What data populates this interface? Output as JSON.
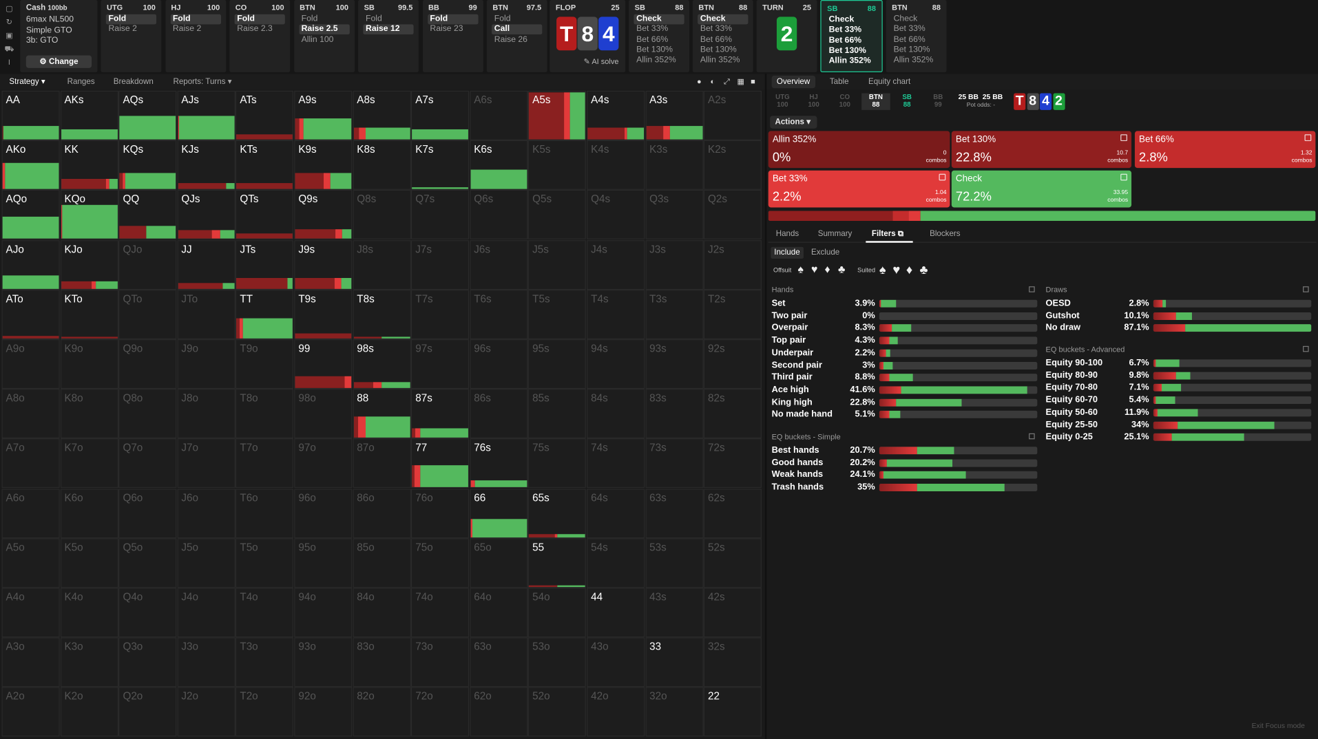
{
  "colors": {
    "green": "#54b95e",
    "dark_red": "#8a2020",
    "red": "#e33a3a",
    "mid_red": "#c52a2a",
    "blue": "#1f3fd0",
    "gray_card": "#4a4a4a",
    "accent": "#1ec995"
  },
  "sidebar_icons": [
    "square-icon",
    "refresh-icon",
    "save-icon",
    "car-icon",
    "text-cursor-icon"
  ],
  "game": {
    "title": "Cash",
    "stakes": "100bb",
    "lines": [
      "6max NL500",
      "Simple GTO",
      "3b: GTO"
    ],
    "change": "Change",
    "change_icon": "gear-icon"
  },
  "preflop": [
    {
      "pos": "UTG",
      "stack": "100",
      "opts": [
        {
          "t": "Fold",
          "sel": true
        },
        {
          "t": "Raise 2"
        }
      ]
    },
    {
      "pos": "HJ",
      "stack": "100",
      "opts": [
        {
          "t": "Fold",
          "sel": true
        },
        {
          "t": "Raise 2"
        }
      ]
    },
    {
      "pos": "CO",
      "stack": "100",
      "opts": [
        {
          "t": "Fold",
          "sel": true
        },
        {
          "t": "Raise 2.3"
        }
      ]
    },
    {
      "pos": "BTN",
      "stack": "100",
      "opts": [
        {
          "t": "Fold"
        },
        {
          "t": "Raise 2.5",
          "sel": true
        },
        {
          "t": "Allin 100"
        }
      ]
    },
    {
      "pos": "SB",
      "stack": "99.5",
      "opts": [
        {
          "t": "Fold"
        },
        {
          "t": "Raise 12",
          "sel": true
        }
      ]
    },
    {
      "pos": "BB",
      "stack": "99",
      "opts": [
        {
          "t": "Fold",
          "sel": true
        },
        {
          "t": "Raise 23"
        }
      ]
    },
    {
      "pos": "BTN",
      "stack": "97.5",
      "opts": [
        {
          "t": "Fold"
        },
        {
          "t": "Call",
          "sel": true
        },
        {
          "t": "Raise 26"
        }
      ]
    }
  ],
  "flop": {
    "label": "FLOP",
    "pot": "25",
    "cards": [
      {
        "r": "T",
        "c": "#b51d1d"
      },
      {
        "r": "8",
        "c": "#4a4a4a"
      },
      {
        "r": "4",
        "c": "#1f3fd0"
      }
    ],
    "ai": "AI solve"
  },
  "postflop": [
    {
      "pos": "SB",
      "stack": "88",
      "opts": [
        {
          "t": "Check",
          "sel": true
        },
        {
          "t": "Bet 33%"
        },
        {
          "t": "Bet 66%"
        },
        {
          "t": "Bet 130%"
        },
        {
          "t": "Allin 352%"
        }
      ]
    },
    {
      "pos": "BTN",
      "stack": "88",
      "opts": [
        {
          "t": "Check",
          "sel": true
        },
        {
          "t": "Bet 33%"
        },
        {
          "t": "Bet 66%"
        },
        {
          "t": "Bet 130%"
        },
        {
          "t": "Allin 352%"
        }
      ]
    }
  ],
  "turn": {
    "label": "TURN",
    "pot": "25",
    "card": {
      "r": "2",
      "c": "#1c9e3a"
    }
  },
  "active_panel": {
    "pos": "SB",
    "stack": "88",
    "opts": [
      "Check",
      "Bet 33%",
      "Bet 66%",
      "Bet 130%",
      "Allin 352%"
    ]
  },
  "next_panel": {
    "pos": "BTN",
    "stack": "88",
    "opts": [
      "Check",
      "Bet 33%",
      "Bet 66%",
      "Bet 130%",
      "Allin 352%"
    ]
  },
  "left_tabs": [
    "Strategy",
    "Ranges",
    "Breakdown",
    "Reports: Turns"
  ],
  "view_icons": [
    "circle-icon",
    "contrast-icon",
    "expand-icon",
    "grid-icon",
    "square-icon"
  ],
  "grid": [
    [
      "AA",
      "AKs",
      "AQs",
      "AJs",
      "ATs",
      "A9s",
      "A8s",
      "A7s",
      "A6s",
      "A5s",
      "A4s",
      "A3s",
      "A2s"
    ],
    [
      "AKo",
      "KK",
      "KQs",
      "KJs",
      "KTs",
      "K9s",
      "K8s",
      "K7s",
      "K6s",
      "K5s",
      "K4s",
      "K3s",
      "K2s"
    ],
    [
      "AQo",
      "KQo",
      "QQ",
      "QJs",
      "QTs",
      "Q9s",
      "Q8s",
      "Q7s",
      "Q6s",
      "Q5s",
      "Q4s",
      "Q3s",
      "Q2s"
    ],
    [
      "AJo",
      "KJo",
      "QJo",
      "JJ",
      "JTs",
      "J9s",
      "J8s",
      "J7s",
      "J6s",
      "J5s",
      "J4s",
      "J3s",
      "J2s"
    ],
    [
      "ATo",
      "KTo",
      "QTo",
      "JTo",
      "TT",
      "T9s",
      "T8s",
      "T7s",
      "T6s",
      "T5s",
      "T4s",
      "T3s",
      "T2s"
    ],
    [
      "A9o",
      "K9o",
      "Q9o",
      "J9o",
      "T9o",
      "99",
      "98s",
      "97s",
      "96s",
      "95s",
      "94s",
      "93s",
      "92s"
    ],
    [
      "A8o",
      "K8o",
      "Q8o",
      "J8o",
      "T8o",
      "98o",
      "88",
      "87s",
      "86s",
      "85s",
      "84s",
      "83s",
      "82s"
    ],
    [
      "A7o",
      "K7o",
      "Q7o",
      "J7o",
      "T7o",
      "97o",
      "87o",
      "77",
      "76s",
      "75s",
      "74s",
      "73s",
      "72s"
    ],
    [
      "A6o",
      "K6o",
      "Q6o",
      "J6o",
      "T6o",
      "96o",
      "86o",
      "76o",
      "66",
      "65s",
      "64s",
      "63s",
      "62s"
    ],
    [
      "A5o",
      "K5o",
      "Q5o",
      "J5o",
      "T5o",
      "95o",
      "85o",
      "75o",
      "65o",
      "55",
      "54s",
      "53s",
      "52s"
    ],
    [
      "A4o",
      "K4o",
      "Q4o",
      "J4o",
      "T4o",
      "94o",
      "84o",
      "74o",
      "64o",
      "54o",
      "44",
      "43s",
      "42s"
    ],
    [
      "A3o",
      "K3o",
      "Q3o",
      "J3o",
      "T3o",
      "93o",
      "83o",
      "73o",
      "63o",
      "53o",
      "43o",
      "33",
      "32s"
    ],
    [
      "A2o",
      "K2o",
      "Q2o",
      "J2o",
      "T2o",
      "92o",
      "82o",
      "72o",
      "62o",
      "52o",
      "42o",
      "32o",
      "22"
    ]
  ],
  "cell_strategy": {
    "AA": {
      "h": 0.28,
      "mix": [
        [
          0,
          0.02,
          "dr"
        ],
        [
          0.02,
          1,
          "g"
        ]
      ]
    },
    "AKs": {
      "h": 0.22,
      "mix": [
        [
          0,
          1,
          "g"
        ]
      ]
    },
    "AQs": {
      "h": 0.5,
      "mix": [
        [
          0,
          1,
          "g"
        ]
      ]
    },
    "AJs": {
      "h": 0.5,
      "mix": [
        [
          0,
          0.02,
          "r"
        ],
        [
          0.02,
          1,
          "g"
        ]
      ]
    },
    "ATs": {
      "h": 0.1,
      "mix": [
        [
          0,
          1,
          "dr"
        ]
      ]
    },
    "A9s": {
      "h": 0.45,
      "mix": [
        [
          0,
          0.08,
          "dr"
        ],
        [
          0.08,
          0.15,
          "r"
        ],
        [
          0.15,
          1,
          "g"
        ]
      ]
    },
    "A8s": {
      "h": 0.25,
      "mix": [
        [
          0,
          0.1,
          "dr"
        ],
        [
          0.1,
          0.22,
          "r"
        ],
        [
          0.22,
          1,
          "g"
        ]
      ]
    },
    "A7s": {
      "h": 0.22,
      "mix": [
        [
          0,
          1,
          "g"
        ]
      ]
    },
    "A5s": {
      "h": 1,
      "mix": [
        [
          0,
          0.62,
          "dr"
        ],
        [
          0.62,
          0.72,
          "r"
        ],
        [
          0.72,
          1,
          "g"
        ]
      ]
    },
    "A4s": {
      "h": 0.25,
      "mix": [
        [
          0,
          0.65,
          "dr"
        ],
        [
          0.65,
          0.7,
          "r"
        ],
        [
          0.7,
          1,
          "g"
        ]
      ]
    },
    "A3s": {
      "h": 0.28,
      "mix": [
        [
          0,
          0.3,
          "dr"
        ],
        [
          0.3,
          0.42,
          "r"
        ],
        [
          0.42,
          1,
          "g"
        ]
      ]
    },
    "AKo": {
      "h": 0.55,
      "mix": [
        [
          0,
          0.04,
          "r"
        ],
        [
          0.04,
          1,
          "g"
        ]
      ]
    },
    "KK": {
      "h": 0.22,
      "mix": [
        [
          0,
          0.8,
          "dr"
        ],
        [
          0.8,
          0.86,
          "r"
        ],
        [
          0.86,
          1,
          "g"
        ]
      ]
    },
    "KQs": {
      "h": 0.35,
      "mix": [
        [
          0,
          0.05,
          "dr"
        ],
        [
          0.05,
          0.1,
          "r"
        ],
        [
          0.1,
          1,
          "g"
        ]
      ]
    },
    "KJs": {
      "h": 0.12,
      "mix": [
        [
          0,
          0.85,
          "dr"
        ],
        [
          0.85,
          1,
          "g"
        ]
      ]
    },
    "KTs": {
      "h": 0.12,
      "mix": [
        [
          0,
          1,
          "dr"
        ]
      ]
    },
    "K9s": {
      "h": 0.35,
      "mix": [
        [
          0,
          0.5,
          "dr"
        ],
        [
          0.5,
          0.62,
          "r"
        ],
        [
          0.62,
          1,
          "g"
        ]
      ]
    },
    "K7s": {
      "h": 0.03,
      "mix": [
        [
          0,
          1,
          "g"
        ]
      ]
    },
    "K6s": {
      "h": 0.42,
      "mix": [
        [
          0,
          1,
          "g"
        ]
      ]
    },
    "AQo": {
      "h": 0.48,
      "mix": [
        [
          0,
          1,
          "g"
        ]
      ]
    },
    "KQo": {
      "h": 0.72,
      "mix": [
        [
          0,
          0.02,
          "r"
        ],
        [
          0.02,
          1,
          "g"
        ]
      ]
    },
    "QQ": {
      "h": 0.28,
      "mix": [
        [
          0,
          0.48,
          "dr"
        ],
        [
          0.48,
          1,
          "g"
        ]
      ]
    },
    "QJs": {
      "h": 0.18,
      "mix": [
        [
          0,
          0.6,
          "dr"
        ],
        [
          0.6,
          0.75,
          "r"
        ],
        [
          0.75,
          1,
          "g"
        ]
      ]
    },
    "QTs": {
      "h": 0.12,
      "mix": [
        [
          0,
          1,
          "dr"
        ]
      ]
    },
    "Q9s": {
      "h": 0.2,
      "mix": [
        [
          0,
          0.72,
          "dr"
        ],
        [
          0.72,
          0.84,
          "r"
        ],
        [
          0.84,
          1,
          "g"
        ]
      ]
    },
    "AJo": {
      "h": 0.28,
      "mix": [
        [
          0,
          1,
          "g"
        ]
      ]
    },
    "KJo": {
      "h": 0.16,
      "mix": [
        [
          0,
          0.55,
          "dr"
        ],
        [
          0.55,
          0.62,
          "r"
        ],
        [
          0.62,
          1,
          "g"
        ]
      ]
    },
    "JJ": {
      "h": 0.12,
      "mix": [
        [
          0,
          0.8,
          "dr"
        ],
        [
          0.8,
          1,
          "g"
        ]
      ]
    },
    "JTs": {
      "h": 0.22,
      "mix": [
        [
          0,
          0.9,
          "dr"
        ],
        [
          0.9,
          1,
          "g"
        ]
      ]
    },
    "J9s": {
      "h": 0.22,
      "mix": [
        [
          0,
          0.7,
          "dr"
        ],
        [
          0.7,
          0.82,
          "r"
        ],
        [
          0.82,
          1,
          "g"
        ]
      ]
    },
    "ATo": {
      "h": 0.05,
      "mix": [
        [
          0,
          1,
          "dr"
        ]
      ]
    },
    "KTo": {
      "h": 0.03,
      "mix": [
        [
          0,
          1,
          "dr"
        ]
      ]
    },
    "TT": {
      "h": 0.42,
      "mix": [
        [
          0,
          0.05,
          "dr"
        ],
        [
          0.05,
          0.12,
          "r"
        ],
        [
          0.12,
          1,
          "g"
        ]
      ]
    },
    "T9s": {
      "h": 0.1,
      "mix": [
        [
          0,
          1,
          "dr"
        ]
      ]
    },
    "T8s": {
      "h": 0.03,
      "mix": [
        [
          0,
          0.5,
          "dr"
        ],
        [
          0.5,
          1,
          "g"
        ]
      ]
    },
    "99": {
      "h": 0.25,
      "mix": [
        [
          0,
          0.88,
          "dr"
        ],
        [
          0.88,
          1,
          "r"
        ]
      ]
    },
    "98s": {
      "h": 0.12,
      "mix": [
        [
          0,
          0.35,
          "dr"
        ],
        [
          0.35,
          0.5,
          "r"
        ],
        [
          0.5,
          1,
          "g"
        ]
      ]
    },
    "88": {
      "h": 0.45,
      "mix": [
        [
          0,
          0.08,
          "dr"
        ],
        [
          0.08,
          0.22,
          "r"
        ],
        [
          0.22,
          1,
          "g"
        ]
      ]
    },
    "87s": {
      "h": 0.2,
      "mix": [
        [
          0,
          0.05,
          "dr"
        ],
        [
          0.05,
          0.15,
          "r"
        ],
        [
          0.15,
          1,
          "g"
        ]
      ]
    },
    "77": {
      "h": 0.48,
      "mix": [
        [
          0,
          0.04,
          "dr"
        ],
        [
          0.04,
          0.14,
          "r"
        ],
        [
          0.14,
          1,
          "g"
        ]
      ]
    },
    "76s": {
      "h": 0.15,
      "mix": [
        [
          0,
          0.08,
          "r"
        ],
        [
          0.08,
          1,
          "g"
        ]
      ]
    },
    "66": {
      "h": 0.38,
      "mix": [
        [
          0,
          0.04,
          "r"
        ],
        [
          0.04,
          1,
          "g"
        ]
      ]
    },
    "65s": {
      "h": 0.06,
      "mix": [
        [
          0,
          0.45,
          "dr"
        ],
        [
          0.45,
          0.5,
          "r"
        ],
        [
          0.5,
          1,
          "g"
        ]
      ]
    },
    "55": {
      "h": 0.03,
      "mix": [
        [
          0,
          0.5,
          "dr"
        ],
        [
          0.5,
          1,
          "g"
        ]
      ]
    }
  },
  "dim_cells": [
    "A6s",
    "A2s",
    "K5s",
    "K4s",
    "K3s",
    "K2s",
    "Q8s",
    "Q7s",
    "Q6s",
    "Q5s",
    "Q4s",
    "Q3s",
    "Q2s",
    "QJo",
    "J8s",
    "J7s",
    "J6s",
    "J5s",
    "J4s",
    "J3s",
    "J2s",
    "QTo",
    "JTo",
    "T7s",
    "T6s",
    "T5s",
    "T4s",
    "T3s",
    "T2s",
    "A9o",
    "K9o",
    "Q9o",
    "J9o",
    "T9o",
    "97s",
    "96s",
    "95s",
    "94s",
    "93s",
    "92s",
    "A8o",
    "K8o",
    "Q8o",
    "J8o",
    "T8o",
    "98o",
    "86s",
    "85s",
    "84s",
    "83s",
    "82s",
    "A7o",
    "K7o",
    "Q7o",
    "J7o",
    "T7o",
    "97o",
    "87o",
    "75s",
    "74s",
    "73s",
    "72s",
    "A6o",
    "K6o",
    "Q6o",
    "J6o",
    "T6o",
    "96o",
    "86o",
    "76o",
    "64s",
    "63s",
    "62s",
    "A5o",
    "K5o",
    "Q5o",
    "J5o",
    "T5o",
    "95o",
    "85o",
    "75o",
    "65o",
    "54s",
    "53s",
    "52s",
    "A4o",
    "K4o",
    "Q4o",
    "J4o",
    "T4o",
    "94o",
    "84o",
    "74o",
    "64o",
    "54o",
    "43s",
    "42s",
    "A3o",
    "K3o",
    "Q3o",
    "J3o",
    "T3o",
    "93o",
    "83o",
    "73o",
    "63o",
    "53o",
    "43o",
    "32s",
    "A2o",
    "K2o",
    "Q2o",
    "J2o",
    "T2o",
    "92o",
    "82o",
    "72o",
    "62o",
    "52o",
    "42o",
    "32o"
  ],
  "right_tabs": [
    "Overview",
    "Table",
    "Equity chart"
  ],
  "pos_chips": [
    {
      "p": "UTG",
      "s": "100"
    },
    {
      "p": "HJ",
      "s": "100"
    },
    {
      "p": "CO",
      "s": "100"
    },
    {
      "p": "BTN",
      "s": "88"
    },
    {
      "p": "SB",
      "s": "88"
    },
    {
      "p": "BB",
      "s": "99"
    }
  ],
  "pot": {
    "a": "25 BB",
    "b": "25 BB",
    "odds": "Pot odds: -"
  },
  "board": [
    {
      "r": "T",
      "c": "#b51d1d"
    },
    {
      "r": "8",
      "c": "#4a4a4a"
    },
    {
      "r": "4",
      "c": "#1f3fd0"
    },
    {
      "r": "2",
      "c": "#1c9e3a"
    }
  ],
  "actions_label": "Actions",
  "actions": [
    {
      "t": "Allin 352%",
      "p": "0%",
      "c": "0",
      "bg": "#7a1b1b",
      "freq": 0
    },
    {
      "t": "Bet 130%",
      "p": "22.8%",
      "c": "10.7",
      "bg": "#901f1f",
      "freq": 22.8
    },
    {
      "t": "Bet 66%",
      "p": "2.8%",
      "c": "1.32",
      "bg": "#c42c2c",
      "freq": 2.8
    },
    {
      "t": "Bet 33%",
      "p": "2.2%",
      "c": "1.04",
      "bg": "#e13a3a",
      "freq": 2.2
    },
    {
      "t": "Check",
      "p": "72.2%",
      "c": "33.95",
      "bg": "#54b95e",
      "freq": 72.2
    }
  ],
  "combos_word": "combos",
  "sub_tabs": [
    "Hands",
    "Summary",
    "Filters",
    "Blockers"
  ],
  "incl": [
    "Include",
    "Exclude"
  ],
  "suit_filter": {
    "offsuit": "Offsuit",
    "suited": "Suited",
    "suits": [
      "♠",
      "♥",
      "♦",
      "♣"
    ]
  },
  "hands_title": "Hands",
  "hands": [
    [
      "Set",
      "3.9%",
      0.1,
      0.9
    ],
    [
      "Two pair",
      "0%",
      0,
      0
    ],
    [
      "Overpair",
      "8.3%",
      0.4,
      0.6
    ],
    [
      "Top pair",
      "4.3%",
      0.55,
      0.45
    ],
    [
      "Underpair",
      "2.2%",
      0.6,
      0.4
    ],
    [
      "Second pair",
      "3%",
      0.3,
      0.7
    ],
    [
      "Third pair",
      "8.8%",
      0.3,
      0.7
    ],
    [
      "Ace high",
      "41.6%",
      0.15,
      0.85
    ],
    [
      "King high",
      "22.8%",
      0.2,
      0.8
    ],
    [
      "No made hand",
      "5.1%",
      0.5,
      0.5
    ]
  ],
  "eq_simple_title": "EQ buckets - Simple",
  "eq_simple": [
    [
      "Best hands",
      "20.7%",
      0.5,
      0.5
    ],
    [
      "Good hands",
      "20.2%",
      0.1,
      0.9
    ],
    [
      "Weak hands",
      "24.1%",
      0.05,
      0.95
    ],
    [
      "Trash hands",
      "35%",
      0.3,
      0.7
    ]
  ],
  "draws_title": "Draws",
  "draws": [
    [
      "OESD",
      "2.8%",
      0.7,
      0.3
    ],
    [
      "Gutshot",
      "10.1%",
      0.6,
      0.4
    ],
    [
      "No draw",
      "87.1%",
      0.2,
      0.8
    ]
  ],
  "eq_adv_title": "EQ buckets - Advanced",
  "eq_adv": [
    [
      "Equity 90-100",
      "6.7%",
      0.1,
      0.9
    ],
    [
      "Equity 80-90",
      "9.8%",
      0.6,
      0.4
    ],
    [
      "Equity 70-80",
      "7.1%",
      0.3,
      0.7
    ],
    [
      "Equity 60-70",
      "5.4%",
      0.1,
      0.9
    ],
    [
      "Equity 50-60",
      "11.9%",
      0.1,
      0.9
    ],
    [
      "Equity 25-50",
      "34%",
      0.2,
      0.8
    ],
    [
      "Equity 0-25",
      "25.1%",
      0.2,
      0.8
    ]
  ],
  "exit": "Exit Focus mode"
}
